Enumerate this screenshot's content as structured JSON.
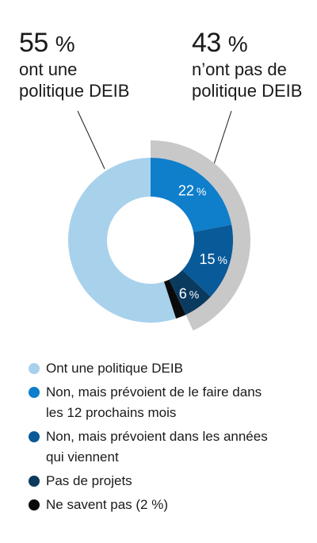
{
  "callouts": {
    "left": {
      "value": "55",
      "symbol": "%",
      "line1": "ont une",
      "line2": "politique DEIB"
    },
    "right": {
      "value": "43",
      "symbol": "%",
      "line1": "n’ont pas de",
      "line2": "politique DEIB"
    }
  },
  "chart_data": {
    "type": "pie",
    "donut": true,
    "unit": "%",
    "series": [
      {
        "name": "Ont une politique DEIB",
        "value": 55,
        "color": "#a8d1ec",
        "label": ""
      },
      {
        "name": "Non, mais prévoient de le faire dans les 12 prochains mois",
        "value": 22,
        "color": "#0f7ecb",
        "label": "22"
      },
      {
        "name": "Non, mais prévoient dans les années qui viennent",
        "value": 15,
        "color": "#095a98",
        "label": "15"
      },
      {
        "name": "Pas de projets",
        "value": 6,
        "color": "#0b3a5f",
        "label": "6"
      },
      {
        "name": "Ne savent pas (2 %)",
        "value": 2,
        "color": "#0a0a0a",
        "label": ""
      }
    ],
    "highlight_arc": {
      "covers": "Non",
      "total": 43,
      "color": "#c8c8c8"
    },
    "legend_position": "bottom"
  },
  "legend": [
    {
      "line1": "Ont une politique DEIB",
      "line2": "",
      "color": "#a8d1ec"
    },
    {
      "line1": "Non, mais prévoient de le faire dans",
      "line2": "les 12 prochains mois",
      "color": "#0f7ecb"
    },
    {
      "line1": "Non, mais prévoient dans les années",
      "line2": "qui viennent",
      "color": "#095a98"
    },
    {
      "line1": "Pas de projets",
      "line2": "",
      "color": "#0b3a5f"
    },
    {
      "line1": "Ne savent pas (2 %)",
      "line2": "",
      "color": "#0a0a0a"
    }
  ]
}
